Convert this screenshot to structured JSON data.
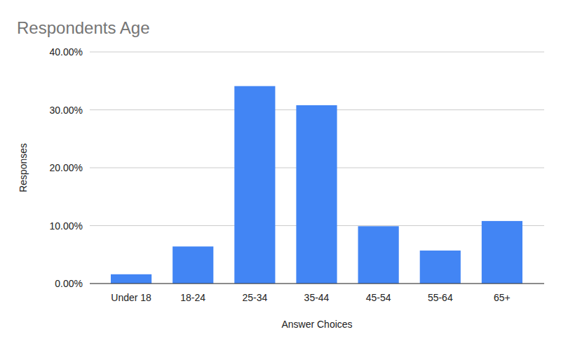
{
  "chart_data": {
    "type": "bar",
    "title": "Respondents Age",
    "x_label": "Answer Choices",
    "y_label": "Responses",
    "categories": [
      "Under 18",
      "18-24",
      "25-34",
      "35-44",
      "45-54",
      "55-64",
      "65+"
    ],
    "values": [
      1.6,
      6.4,
      34.1,
      30.8,
      9.9,
      5.7,
      10.8
    ],
    "color": "#4285f4",
    "ylim": [
      0,
      40
    ],
    "yticks": [
      {
        "value": 0,
        "label": "0.00%"
      },
      {
        "value": 10,
        "label": "10.00%"
      },
      {
        "value": 20,
        "label": "20.00%"
      },
      {
        "value": 30,
        "label": "30.00%"
      },
      {
        "value": 40,
        "label": "40.00%"
      }
    ],
    "grid": true
  }
}
